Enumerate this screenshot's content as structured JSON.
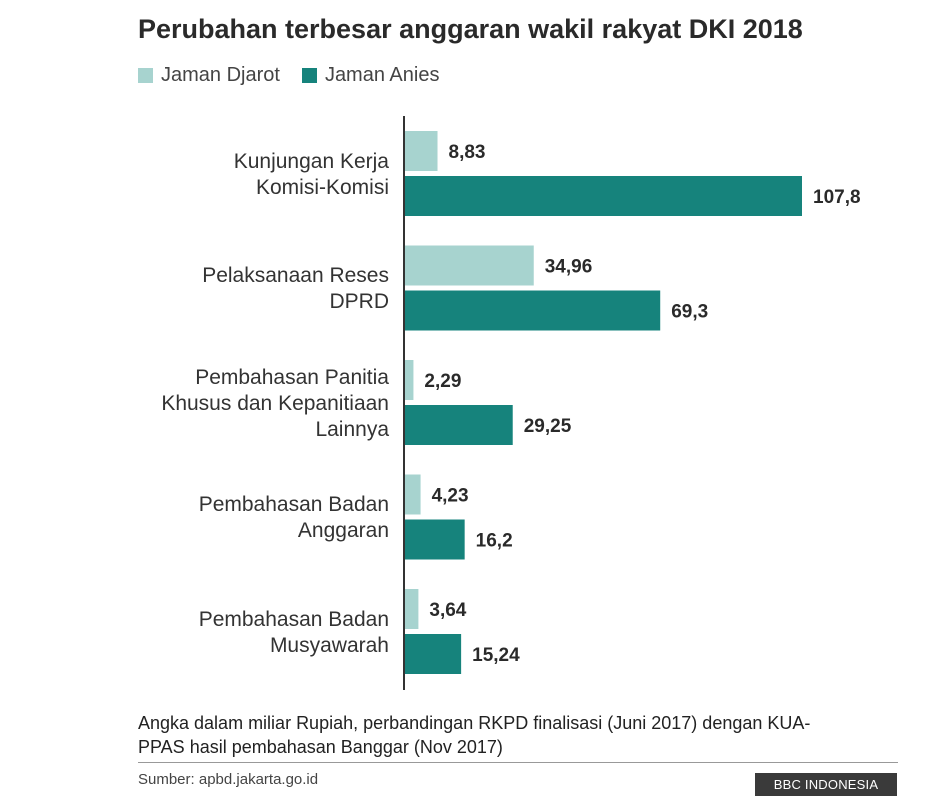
{
  "chart_data": {
    "type": "bar",
    "orientation": "horizontal",
    "title": "Perubahan terbesar anggaran wakil rakyat DKI 2018",
    "categories": [
      "Kunjungan Kerja\nKomisi-Komisi",
      "Pelaksanaan Reses\nDPRD",
      "Pembahasan Panitia\nKhusus dan Kepanitiaan\nLainnya",
      "Pembahasan Badan\nAnggaran",
      "Pembahasan Badan\nMusyawarah"
    ],
    "series": [
      {
        "name": "Jaman Djarot",
        "color": "#a7d3cf",
        "values": [
          8.83,
          34.96,
          2.29,
          4.23,
          3.64
        ],
        "labels": [
          "8,83",
          "34,96",
          "2,29",
          "4,23",
          "3,64"
        ]
      },
      {
        "name": "Jaman Anies",
        "color": "#16837c",
        "values": [
          107.8,
          69.3,
          29.25,
          16.2,
          15.24
        ],
        "labels": [
          "107,8",
          "69,3",
          "29,25",
          "16,2",
          "15,24"
        ]
      }
    ],
    "xlim": [
      0,
      110
    ],
    "grid": false,
    "legend_position": "top-left"
  },
  "note": "Angka dalam miliar Rupiah, perbandingan RKPD finalisasi (Juni 2017) dengan KUA-PPAS hasil pembahasan Banggar (Nov 2017)",
  "source": "Sumber: apbd.jakarta.go.id",
  "brand": "BBC INDONESIA"
}
